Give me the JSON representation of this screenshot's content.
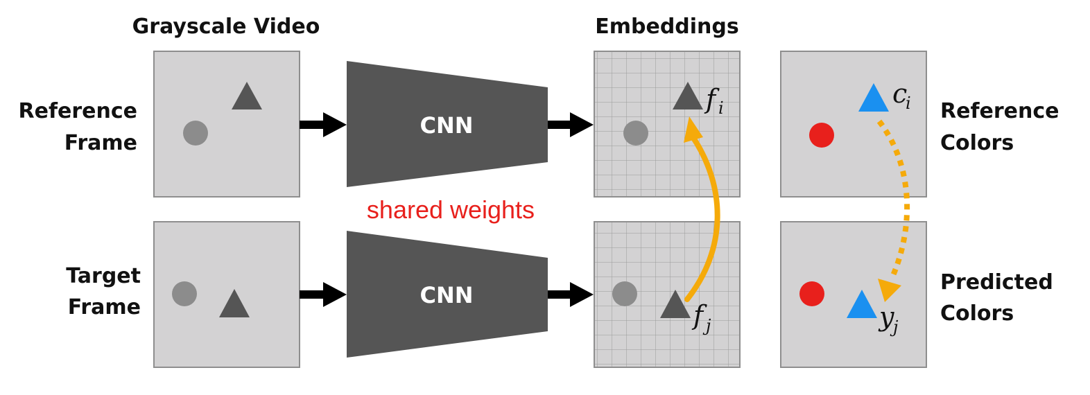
{
  "headers": {
    "video": "Grayscale Video",
    "embeddings": "Embeddings"
  },
  "rows": {
    "reference": {
      "left_line1": "Reference",
      "left_line2": "Frame",
      "right_line1": "Reference",
      "right_line2": "Colors"
    },
    "target": {
      "left_line1": "Target",
      "left_line2": "Frame",
      "right_line1": "Predicted",
      "right_line2": "Colors"
    }
  },
  "network": {
    "label": "CNN",
    "shared": "shared weights"
  },
  "symbols": {
    "f_i": {
      "base": "f",
      "sub": "i"
    },
    "f_j": {
      "base": "f",
      "sub": "j"
    },
    "c_i": {
      "base": "c",
      "sub": "i"
    },
    "y_j": {
      "base": "y",
      "sub": "j"
    }
  },
  "colors": {
    "panel_fill": "#d3d2d3",
    "panel_border": "#8e8e8e",
    "cnn_fill": "#555555",
    "dark_triangle": "#555555",
    "gray_circle": "#8c8c8c",
    "red_circle": "#e8201c",
    "blue_triangle": "#1a90f0",
    "orange_arrow": "#f5aa0a",
    "shared_text": "#e8201c"
  }
}
